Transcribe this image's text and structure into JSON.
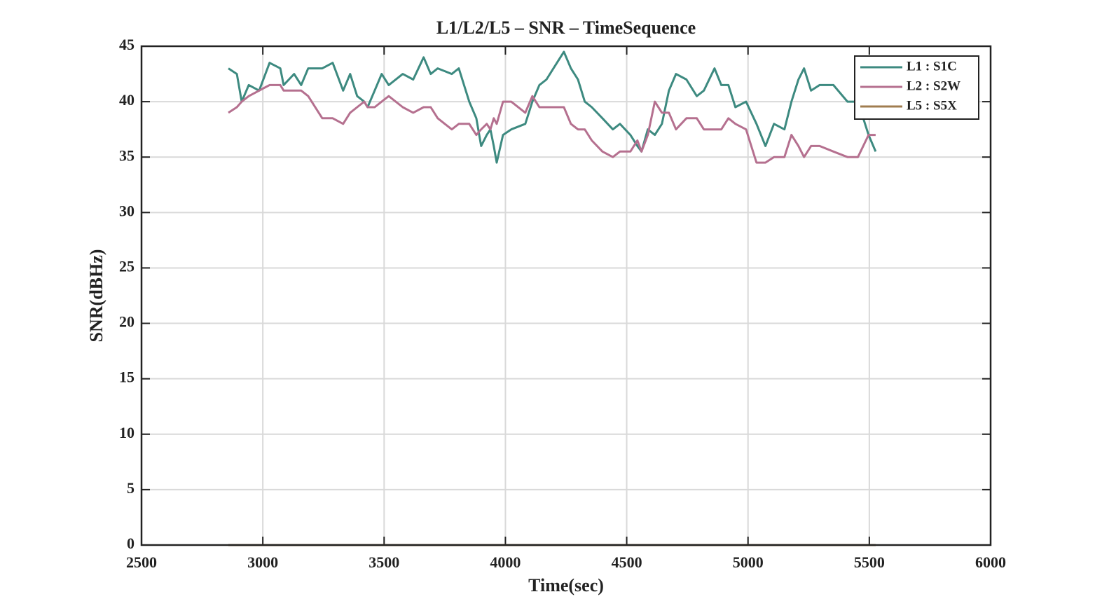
{
  "chart_data": {
    "type": "line",
    "title": "L1/L2/L5 – SNR – TimeSequence",
    "x_label": "Time(sec)",
    "y_label": "SNR(dBHz)",
    "xlim": [
      2500,
      6000
    ],
    "xticks": [
      2500,
      3000,
      3500,
      4000,
      4500,
      5000,
      5500,
      6000
    ],
    "ylim": [
      0,
      45
    ],
    "yticks": [
      0,
      5,
      10,
      15,
      20,
      25,
      30,
      35,
      40,
      45
    ],
    "grid": true,
    "legend": "upper-right",
    "x": [
      2858,
      2893,
      2913,
      2942,
      2985,
      3028,
      3072,
      3086,
      3129,
      3158,
      3187,
      3245,
      3288,
      3331,
      3360,
      3389,
      3418,
      3432,
      3461,
      3490,
      3519,
      3577,
      3620,
      3663,
      3692,
      3721,
      3779,
      3808,
      3851,
      3880,
      3900,
      3923,
      3938,
      3952,
      3964,
      3990,
      4024,
      4082,
      4111,
      4140,
      4169,
      4198,
      4241,
      4270,
      4299,
      4327,
      4356,
      4400,
      4443,
      4472,
      4515,
      4544,
      4561,
      4587,
      4616,
      4645,
      4674,
      4703,
      4746,
      4789,
      4818,
      4862,
      4890,
      4919,
      4948,
      4992,
      5035,
      5072,
      5107,
      5150,
      5179,
      5208,
      5231,
      5260,
      5295,
      5352,
      5410,
      5453,
      5497,
      5526
    ],
    "series": [
      {
        "name": "L1 : S1C",
        "color": "#3d8a80",
        "values": [
          43,
          42.5,
          40,
          41.5,
          41,
          43.5,
          43,
          41.5,
          42.5,
          41.5,
          43,
          43,
          43.5,
          41,
          42.5,
          40.5,
          40,
          39.5,
          41,
          42.5,
          41.5,
          42.5,
          42,
          44,
          42.5,
          43,
          42.5,
          43,
          40,
          38.5,
          36,
          37,
          37.5,
          36,
          34.5,
          37,
          37.5,
          38,
          40,
          41.5,
          42,
          43,
          44.5,
          43,
          42,
          40,
          39.5,
          38.5,
          37.5,
          38,
          37,
          36,
          35.5,
          37.5,
          37,
          38,
          41,
          42.5,
          42,
          40.5,
          41,
          43,
          41.5,
          41.5,
          39.5,
          40,
          38,
          36,
          38,
          37.5,
          40,
          42,
          43,
          41,
          41.5,
          41.5,
          40,
          40,
          37,
          35.5
        ]
      },
      {
        "name": "L2 : S2W",
        "color": "#b5708f",
        "values": [
          39,
          39.5,
          40,
          40.5,
          41,
          41.5,
          41.5,
          41,
          41,
          41,
          40.5,
          38.5,
          38.5,
          38,
          39,
          39.5,
          40,
          39.5,
          39.5,
          40,
          40.5,
          39.5,
          39,
          39.5,
          39.5,
          38.5,
          37.5,
          38,
          38,
          37,
          37.5,
          38,
          37.5,
          38.5,
          38,
          40,
          40,
          39,
          40.5,
          39.5,
          39.5,
          39.5,
          39.5,
          38,
          37.5,
          37.5,
          36.5,
          35.5,
          35,
          35.5,
          35.5,
          36.5,
          35.5,
          37,
          40,
          39,
          39,
          37.5,
          38.5,
          38.5,
          37.5,
          37.5,
          37.5,
          38.5,
          38,
          37.5,
          34.5,
          34.5,
          35,
          35,
          37,
          36,
          35,
          36,
          36,
          35.5,
          35,
          35,
          37,
          37
        ]
      },
      {
        "name": "L5 : S5X",
        "color": "#a07d50",
        "values": [
          0,
          0,
          0,
          0,
          0,
          0,
          0,
          0,
          0,
          0,
          0,
          0,
          0,
          0,
          0,
          0,
          0,
          0,
          0,
          0,
          0,
          0,
          0,
          0,
          0,
          0,
          0,
          0,
          0,
          0,
          0,
          0,
          0,
          0,
          0,
          0,
          0,
          0,
          0,
          0,
          0,
          0,
          0,
          0,
          0,
          0,
          0,
          0,
          0,
          0,
          0,
          0,
          0,
          0,
          0,
          0,
          0,
          0,
          0,
          0,
          0,
          0,
          0,
          0,
          0,
          0,
          0,
          0,
          0,
          0,
          0,
          0,
          0,
          0,
          0,
          0,
          0,
          0,
          0,
          0
        ]
      }
    ]
  }
}
